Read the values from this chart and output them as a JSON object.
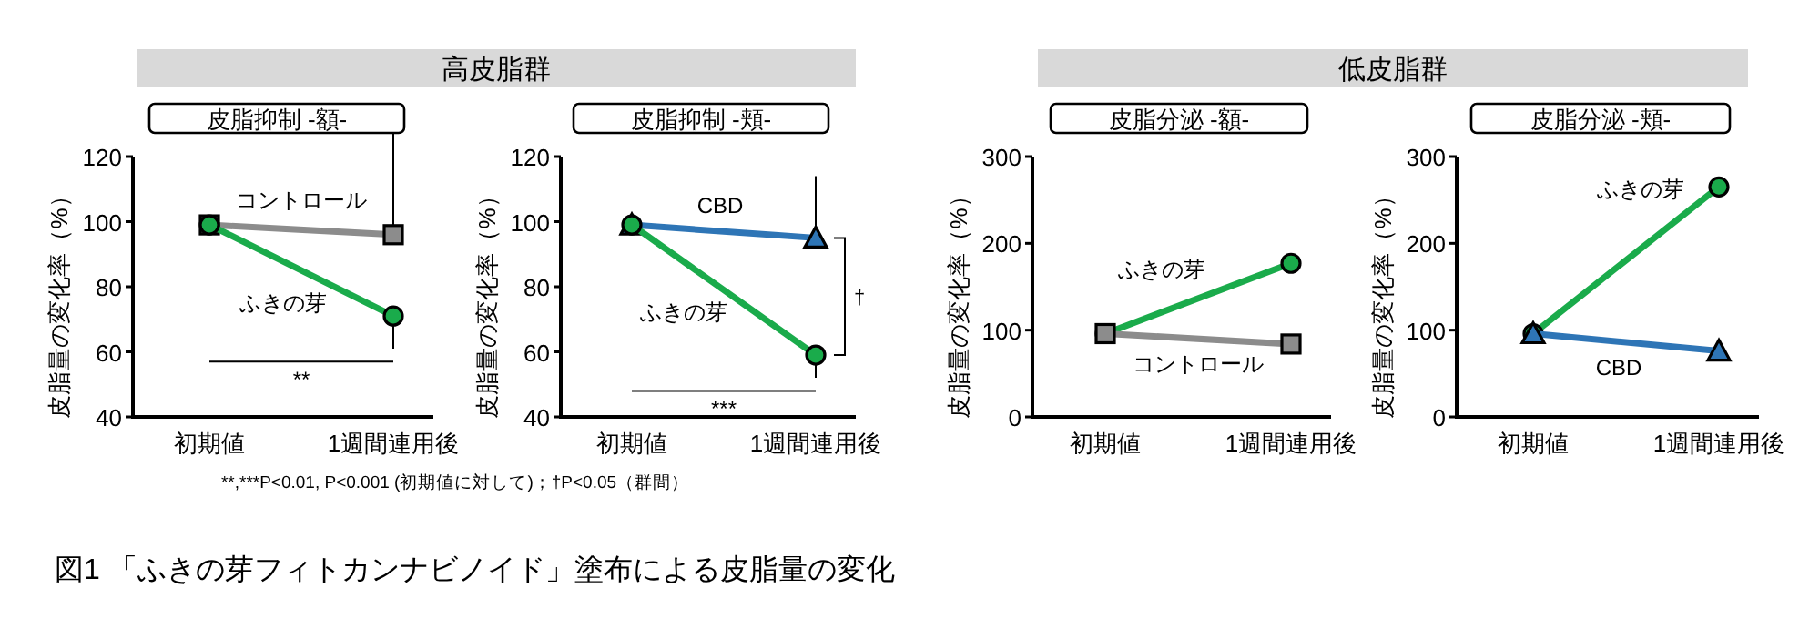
{
  "chart_data": [
    {
      "type": "line",
      "title": "皮脂抑制 -額-",
      "ylabel": "皮脂量の変化率（%）",
      "categories": [
        "初期値",
        "1週間連用後"
      ],
      "ylim": [
        40,
        120
      ],
      "yticks": [
        40,
        60,
        80,
        100,
        120
      ],
      "series": [
        {
          "name": "コントロール",
          "color": "#8c8c8c",
          "marker": "square",
          "values": [
            99,
            96
          ],
          "errors": [
            null,
            [
              96,
              120
            ]
          ]
        },
        {
          "name": "ふきの芽",
          "color": "#1aab4b",
          "marker": "circle",
          "values": [
            99,
            71
          ],
          "errors": [
            null,
            [
              61,
              71
            ]
          ]
        }
      ],
      "annotations": [
        "高皮脂群",
        "**",
        "**,***P<0.01, P<0.001 (初期値に対して)；†P<0.05（群間）",
        "図1 「ふきの芽フィトカンナビノイド」塗布による皮脂量の変化"
      ]
    },
    {
      "type": "line",
      "title": "皮脂抑制 -頬-",
      "ylabel": "皮脂量の変化率（%）",
      "categories": [
        "初期値",
        "1週間連用後"
      ],
      "ylim": [
        40,
        120
      ],
      "yticks": [
        40,
        60,
        80,
        100,
        120
      ],
      "series": [
        {
          "name": "CBD",
          "color": "#2e75b6",
          "marker": "triangle",
          "values": [
            99,
            95
          ],
          "errors": [
            null,
            [
              95,
              114
            ]
          ]
        },
        {
          "name": "ふきの芽",
          "color": "#1aab4b",
          "marker": "circle",
          "values": [
            99,
            59
          ],
          "errors": [
            null,
            [
              52,
              59
            ]
          ]
        }
      ],
      "annotations": [
        "***",
        "†"
      ]
    },
    {
      "type": "line",
      "title": "皮脂分泌 -額-",
      "ylabel": "皮脂量の変化率（%）",
      "categories": [
        "初期値",
        "1週間連用後"
      ],
      "ylim": [
        0,
        300
      ],
      "yticks": [
        0,
        100,
        200,
        300
      ],
      "series": [
        {
          "name": "ふきの芽",
          "color": "#1aab4b",
          "marker": "circle",
          "values": [
            96,
            177
          ]
        },
        {
          "name": "コントロール",
          "color": "#8c8c8c",
          "marker": "square",
          "values": [
            96,
            84
          ]
        }
      ],
      "annotations": [
        "低皮脂群"
      ]
    },
    {
      "type": "line",
      "title": "皮脂分泌 -頬-",
      "ylabel": "皮脂量の変化率（%）",
      "categories": [
        "初期値",
        "1週間連用後"
      ],
      "ylim": [
        0,
        300
      ],
      "yticks": [
        0,
        100,
        200,
        300
      ],
      "series": [
        {
          "name": "ふきの芽",
          "color": "#1aab4b",
          "marker": "circle",
          "values": [
            96,
            265
          ]
        },
        {
          "name": "CBD",
          "color": "#2e75b6",
          "marker": "triangle",
          "values": [
            96,
            76
          ]
        }
      ]
    }
  ]
}
